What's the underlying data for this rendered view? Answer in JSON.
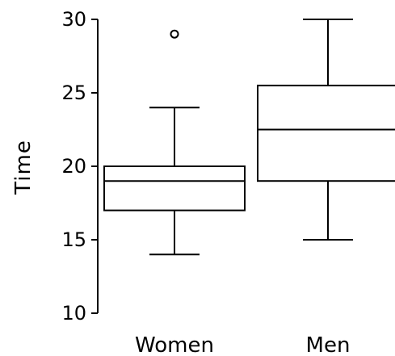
{
  "chart_data": {
    "type": "box",
    "ylabel": "Time",
    "xlabel": "",
    "ylim": [
      10,
      30
    ],
    "yticks": [
      "10",
      "15",
      "20",
      "25",
      "30"
    ],
    "grid": false,
    "categories": [
      "Women",
      "Men"
    ],
    "boxes": [
      {
        "category": "Women",
        "whisker_low": 14,
        "q1": 17,
        "median": 19,
        "q3": 20,
        "whisker_high": 24,
        "outliers": [
          29
        ]
      },
      {
        "category": "Men",
        "whisker_low": 15,
        "q1": 19,
        "median": 22.5,
        "q3": 25.5,
        "whisker_high": 30,
        "outliers": []
      }
    ]
  }
}
